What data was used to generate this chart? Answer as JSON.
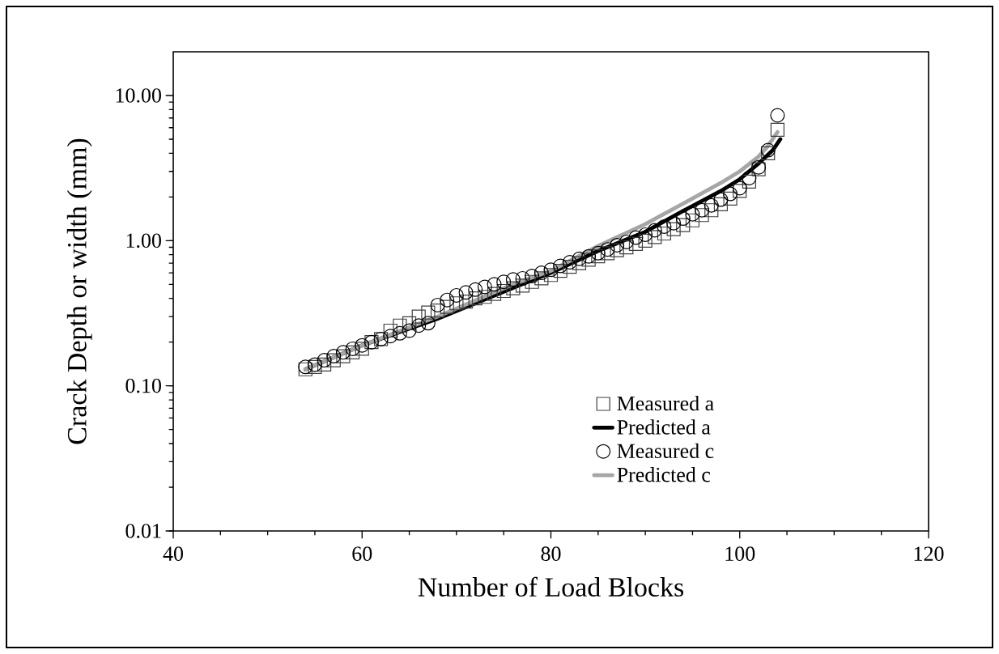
{
  "chart_data": {
    "type": "scatter",
    "xlabel": "Number of Load Blocks",
    "ylabel": "Crack Depth or width (mm)",
    "x": [
      54,
      55,
      56,
      57,
      58,
      59,
      60,
      61,
      62,
      63,
      64,
      65,
      66,
      67,
      68,
      69,
      70,
      71,
      72,
      73,
      74,
      75,
      76,
      77,
      78,
      79,
      80,
      81,
      82,
      83,
      84,
      85,
      86,
      87,
      88,
      89,
      90,
      91,
      92,
      93,
      94,
      95,
      96,
      97,
      98,
      99,
      100,
      101,
      102,
      103,
      104
    ],
    "xlim": [
      40,
      120
    ],
    "xticks": [
      40,
      60,
      80,
      100,
      120
    ],
    "ylim": [
      0.01,
      20
    ],
    "log": "y",
    "yticks": [
      {
        "value": 0.01,
        "label": "0.01"
      },
      {
        "value": 0.1,
        "label": "0.10"
      },
      {
        "value": 1,
        "label": "1.00"
      },
      {
        "value": 10,
        "label": "10.00"
      }
    ],
    "grid": false,
    "legend": "right",
    "series": [
      {
        "name": "Measured a",
        "marker": "square",
        "color": "#404040",
        "values": [
          0.13,
          0.135,
          0.14,
          0.15,
          0.16,
          0.17,
          0.18,
          0.2,
          0.21,
          0.24,
          0.26,
          0.27,
          0.3,
          0.32,
          0.33,
          0.35,
          0.37,
          0.38,
          0.4,
          0.41,
          0.43,
          0.45,
          0.47,
          0.49,
          0.52,
          0.55,
          0.58,
          0.62,
          0.66,
          0.7,
          0.74,
          0.78,
          0.82,
          0.86,
          0.9,
          0.95,
          1.0,
          1.06,
          1.12,
          1.2,
          1.28,
          1.38,
          1.5,
          1.62,
          1.78,
          1.95,
          2.2,
          2.55,
          3.1,
          4.0,
          5.8
        ]
      },
      {
        "name": "Predicted a",
        "type": "line",
        "marker": "none",
        "line_style": "solid",
        "color": "#000000",
        "x": [
          54,
          60,
          68,
          76.6,
          80,
          85,
          90,
          94,
          98,
          100,
          102,
          103.5,
          104.3
        ],
        "values": [
          0.13,
          0.19,
          0.29,
          0.49,
          0.6,
          0.85,
          1.15,
          1.6,
          2.2,
          2.65,
          3.4,
          4.2,
          5.0
        ]
      },
      {
        "name": "Measured c",
        "marker": "circle",
        "color": "#000000",
        "values": [
          0.135,
          0.14,
          0.15,
          0.16,
          0.17,
          0.18,
          0.19,
          0.2,
          0.21,
          0.22,
          0.23,
          0.24,
          0.26,
          0.27,
          0.36,
          0.39,
          0.42,
          0.44,
          0.46,
          0.48,
          0.5,
          0.52,
          0.54,
          0.55,
          0.57,
          0.6,
          0.63,
          0.67,
          0.71,
          0.75,
          0.78,
          0.82,
          0.87,
          0.93,
          0.98,
          1.05,
          1.1,
          1.18,
          1.25,
          1.32,
          1.42,
          1.52,
          1.62,
          1.75,
          1.92,
          2.1,
          2.3,
          2.7,
          3.2,
          4.2,
          7.3
        ]
      },
      {
        "name": "Predicted c",
        "type": "line",
        "marker": "none",
        "line_style": "solid",
        "color": "#a6a6a6",
        "x": [
          54,
          60,
          68,
          76,
          80,
          85,
          90,
          94,
          98,
          100,
          102,
          103,
          104
        ],
        "values": [
          0.13,
          0.19,
          0.3,
          0.5,
          0.62,
          0.92,
          1.3,
          1.8,
          2.5,
          3.0,
          3.8,
          4.5,
          5.6
        ]
      }
    ]
  }
}
